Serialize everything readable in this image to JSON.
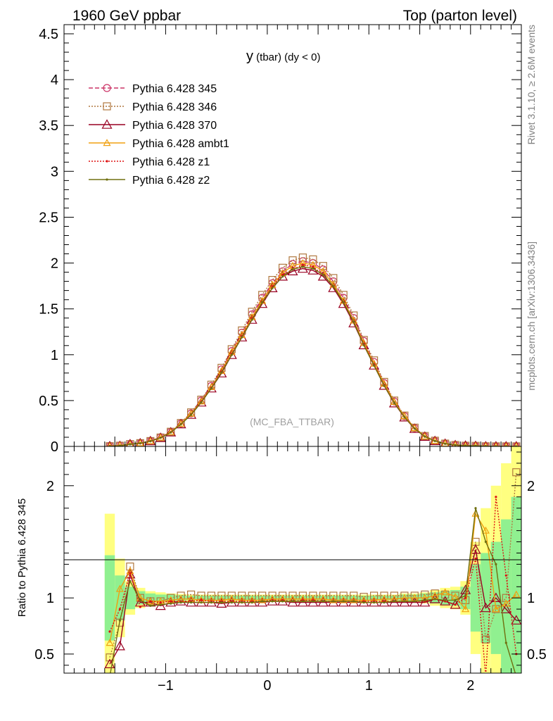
{
  "header": {
    "left_title": "1960 GeV ppbar",
    "right_title": "Top (parton level)"
  },
  "plot_title_main": "y",
  "plot_title_rest": " (tbar) (dy < 0)",
  "watermark": "(MC_FBA_TTBAR)",
  "side_text_top": "Rivet 3.1.10, ≥ 2.6M events",
  "side_text_bottom": "mcplots.cern.ch [arXiv:1306.3436]",
  "ratio_ylabel": "Ratio to Pythia 6.428 345",
  "colors": {
    "band_inner": "#90f090",
    "band_outer": "#ffff80",
    "axis": "#000000"
  },
  "chart_data": [
    {
      "type": "line",
      "panel": "main",
      "xlim": [
        -2,
        2.5
      ],
      "ylim": [
        0,
        4.6
      ],
      "y_ticks": [
        0,
        0.5,
        1,
        1.5,
        2,
        2.5,
        3,
        3.5,
        4,
        4.5
      ],
      "y_tick_labels": [
        "0",
        "0.5",
        "1",
        "1.5",
        "2",
        "2.5",
        "3",
        "3.5",
        "4",
        "4.5"
      ],
      "legend_position": "top-left",
      "series": [
        {
          "name": "Pythia 6.428 345",
          "color": "#cc3366",
          "dash": "6,3",
          "marker": "circle"
        },
        {
          "name": "Pythia 6.428 346",
          "color": "#b07840",
          "dash": "2,2",
          "marker": "square"
        },
        {
          "name": "Pythia 6.428 370",
          "color": "#990022",
          "dash": "",
          "marker": "triangle"
        },
        {
          "name": "Pythia 6.428 ambt1",
          "color": "#f0a010",
          "dash": "",
          "marker": "triangle-small"
        },
        {
          "name": "Pythia 6.428 z1",
          "color": "#dd1111",
          "dash": "2,2",
          "marker": "dot"
        },
        {
          "name": "Pythia 6.428 z2",
          "color": "#707010",
          "dash": "",
          "marker": "dot"
        }
      ],
      "x": [
        -1.55,
        -1.45,
        -1.35,
        -1.25,
        -1.15,
        -1.05,
        -0.95,
        -0.85,
        -0.75,
        -0.65,
        -0.55,
        -0.45,
        -0.35,
        -0.25,
        -0.15,
        -0.05,
        0.05,
        0.15,
        0.25,
        0.35,
        0.45,
        0.55,
        0.65,
        0.75,
        0.85,
        0.95,
        1.05,
        1.15,
        1.25,
        1.35,
        1.45,
        1.55,
        1.65,
        1.75,
        1.85,
        1.95,
        2.05,
        2.15,
        2.25,
        2.35,
        2.45
      ],
      "values": [
        0.005,
        0.01,
        0.02,
        0.035,
        0.06,
        0.1,
        0.16,
        0.25,
        0.36,
        0.5,
        0.66,
        0.84,
        1.04,
        1.24,
        1.44,
        1.62,
        1.78,
        1.91,
        1.99,
        2.02,
        2.0,
        1.93,
        1.8,
        1.62,
        1.4,
        1.15,
        0.92,
        0.69,
        0.49,
        0.33,
        0.2,
        0.11,
        0.06,
        0.03,
        0.015,
        0.008,
        0.004,
        0.002,
        0.001,
        0.001,
        0.0005
      ]
    },
    {
      "type": "line",
      "panel": "ratio",
      "xlim": [
        -2,
        2.5
      ],
      "ylim": [
        0.33,
        2.35
      ],
      "x_ticks": [
        -1,
        0,
        1,
        2
      ],
      "x_tick_labels": [
        "−1",
        "0",
        "1",
        "2"
      ],
      "y_ticks": [
        0.5,
        1,
        2
      ],
      "y_tick_labels": [
        "0.5",
        "1",
        "2"
      ],
      "reference": 1,
      "bands": {
        "x_edges": [
          -1.6,
          -1.5,
          -1.4,
          -1.3,
          -1.2,
          -1.1,
          -1.0,
          -0.9,
          -0.8,
          -0.7,
          -0.6,
          -0.5,
          -0.4,
          -0.3,
          -0.2,
          -0.1,
          0.0,
          0.1,
          0.2,
          0.3,
          0.4,
          0.5,
          0.6,
          0.7,
          0.8,
          0.9,
          1.0,
          1.1,
          1.2,
          1.3,
          1.4,
          1.5,
          1.6,
          1.7,
          1.8,
          1.9,
          2.0,
          2.1,
          2.2,
          2.3,
          2.4,
          2.5
        ],
        "inner_half_width": [
          0.38,
          0.2,
          0.1,
          0.06,
          0.04,
          0.03,
          0.03,
          0.025,
          0.02,
          0.02,
          0.02,
          0.02,
          0.02,
          0.02,
          0.02,
          0.02,
          0.02,
          0.02,
          0.02,
          0.02,
          0.02,
          0.02,
          0.02,
          0.02,
          0.02,
          0.02,
          0.02,
          0.02,
          0.02,
          0.03,
          0.03,
          0.04,
          0.05,
          0.06,
          0.07,
          0.1,
          0.3,
          0.4,
          0.5,
          0.7,
          0.9
        ],
        "outer_half_width": [
          0.75,
          0.35,
          0.15,
          0.09,
          0.06,
          0.05,
          0.04,
          0.035,
          0.03,
          0.03,
          0.03,
          0.03,
          0.03,
          0.03,
          0.03,
          0.03,
          0.03,
          0.03,
          0.03,
          0.03,
          0.03,
          0.03,
          0.03,
          0.03,
          0.03,
          0.03,
          0.03,
          0.03,
          0.03,
          0.04,
          0.04,
          0.05,
          0.07,
          0.09,
          0.1,
          0.15,
          0.5,
          0.8,
          1.0,
          1.2,
          1.4
        ]
      },
      "series": [
        {
          "name": "Pythia 6.428 346",
          "values": [
            0.47,
            0.78,
            1.28,
            1.0,
            0.97,
            0.97,
            1.0,
            1.02,
            1.03,
            1.02,
            1.02,
            1.02,
            1.02,
            1.02,
            1.02,
            1.02,
            1.02,
            1.02,
            1.02,
            1.02,
            1.02,
            1.02,
            1.02,
            1.02,
            1.02,
            1.01,
            1.02,
            1.02,
            1.02,
            1.02,
            1.02,
            1.03,
            1.04,
            1.03,
            1.02,
            0.98,
            1.5,
            0.63,
            0.9,
            1.0,
            2.12
          ]
        },
        {
          "name": "Pythia 6.428 370",
          "values": [
            0.41,
            0.57,
            1.21,
            0.96,
            0.96,
            0.93,
            0.96,
            0.97,
            0.96,
            0.96,
            0.96,
            0.95,
            0.96,
            0.96,
            0.96,
            0.96,
            0.97,
            0.97,
            0.96,
            0.96,
            0.96,
            0.96,
            0.96,
            0.96,
            0.96,
            0.96,
            0.96,
            0.96,
            0.96,
            0.96,
            0.96,
            0.96,
            0.99,
            0.97,
            0.94,
            1.07,
            1.43,
            0.91,
            1.0,
            0.9,
            0.8
          ]
        },
        {
          "name": "Pythia 6.428 ambt1",
          "values": [
            0.6,
            1.08,
            1.24,
            1.0,
            0.97,
            0.97,
            0.98,
            0.99,
            0.99,
            0.98,
            0.98,
            0.98,
            0.99,
            0.98,
            0.98,
            0.98,
            0.99,
            0.99,
            0.99,
            0.99,
            0.99,
            0.99,
            0.98,
            0.98,
            0.98,
            0.98,
            0.98,
            0.99,
            0.99,
            1.0,
            1.0,
            1.0,
            1.02,
            1.05,
            1.01,
            0.9,
            1.75,
            1.6,
            0.9,
            0.95,
            1.03
          ]
        },
        {
          "name": "Pythia 6.428 z1",
          "values": [
            0.7,
            0.9,
            1.22,
            0.92,
            0.97,
            0.96,
            0.97,
            0.97,
            0.97,
            0.98,
            0.97,
            0.97,
            0.97,
            0.97,
            0.97,
            0.97,
            0.98,
            0.98,
            0.97,
            0.98,
            0.98,
            0.97,
            0.97,
            0.97,
            0.97,
            0.97,
            0.97,
            0.97,
            0.97,
            0.97,
            0.97,
            0.97,
            0.99,
            0.97,
            0.94,
            1.0,
            1.35,
            0.3,
            1.9,
            1.2,
            0.5
          ]
        },
        {
          "name": "Pythia 6.428 z2",
          "values": [
            0.3,
            0.8,
            1.15,
            0.98,
            0.93,
            0.94,
            0.95,
            0.96,
            0.96,
            0.96,
            0.96,
            0.96,
            0.96,
            0.96,
            0.96,
            0.97,
            0.97,
            0.97,
            0.97,
            0.97,
            0.97,
            0.97,
            0.97,
            0.97,
            0.97,
            0.96,
            0.96,
            0.96,
            0.97,
            0.97,
            0.97,
            0.98,
            0.99,
            0.98,
            0.98,
            1.02,
            1.8,
            1.5,
            1.3,
            0.6,
            0.3
          ]
        }
      ]
    }
  ]
}
